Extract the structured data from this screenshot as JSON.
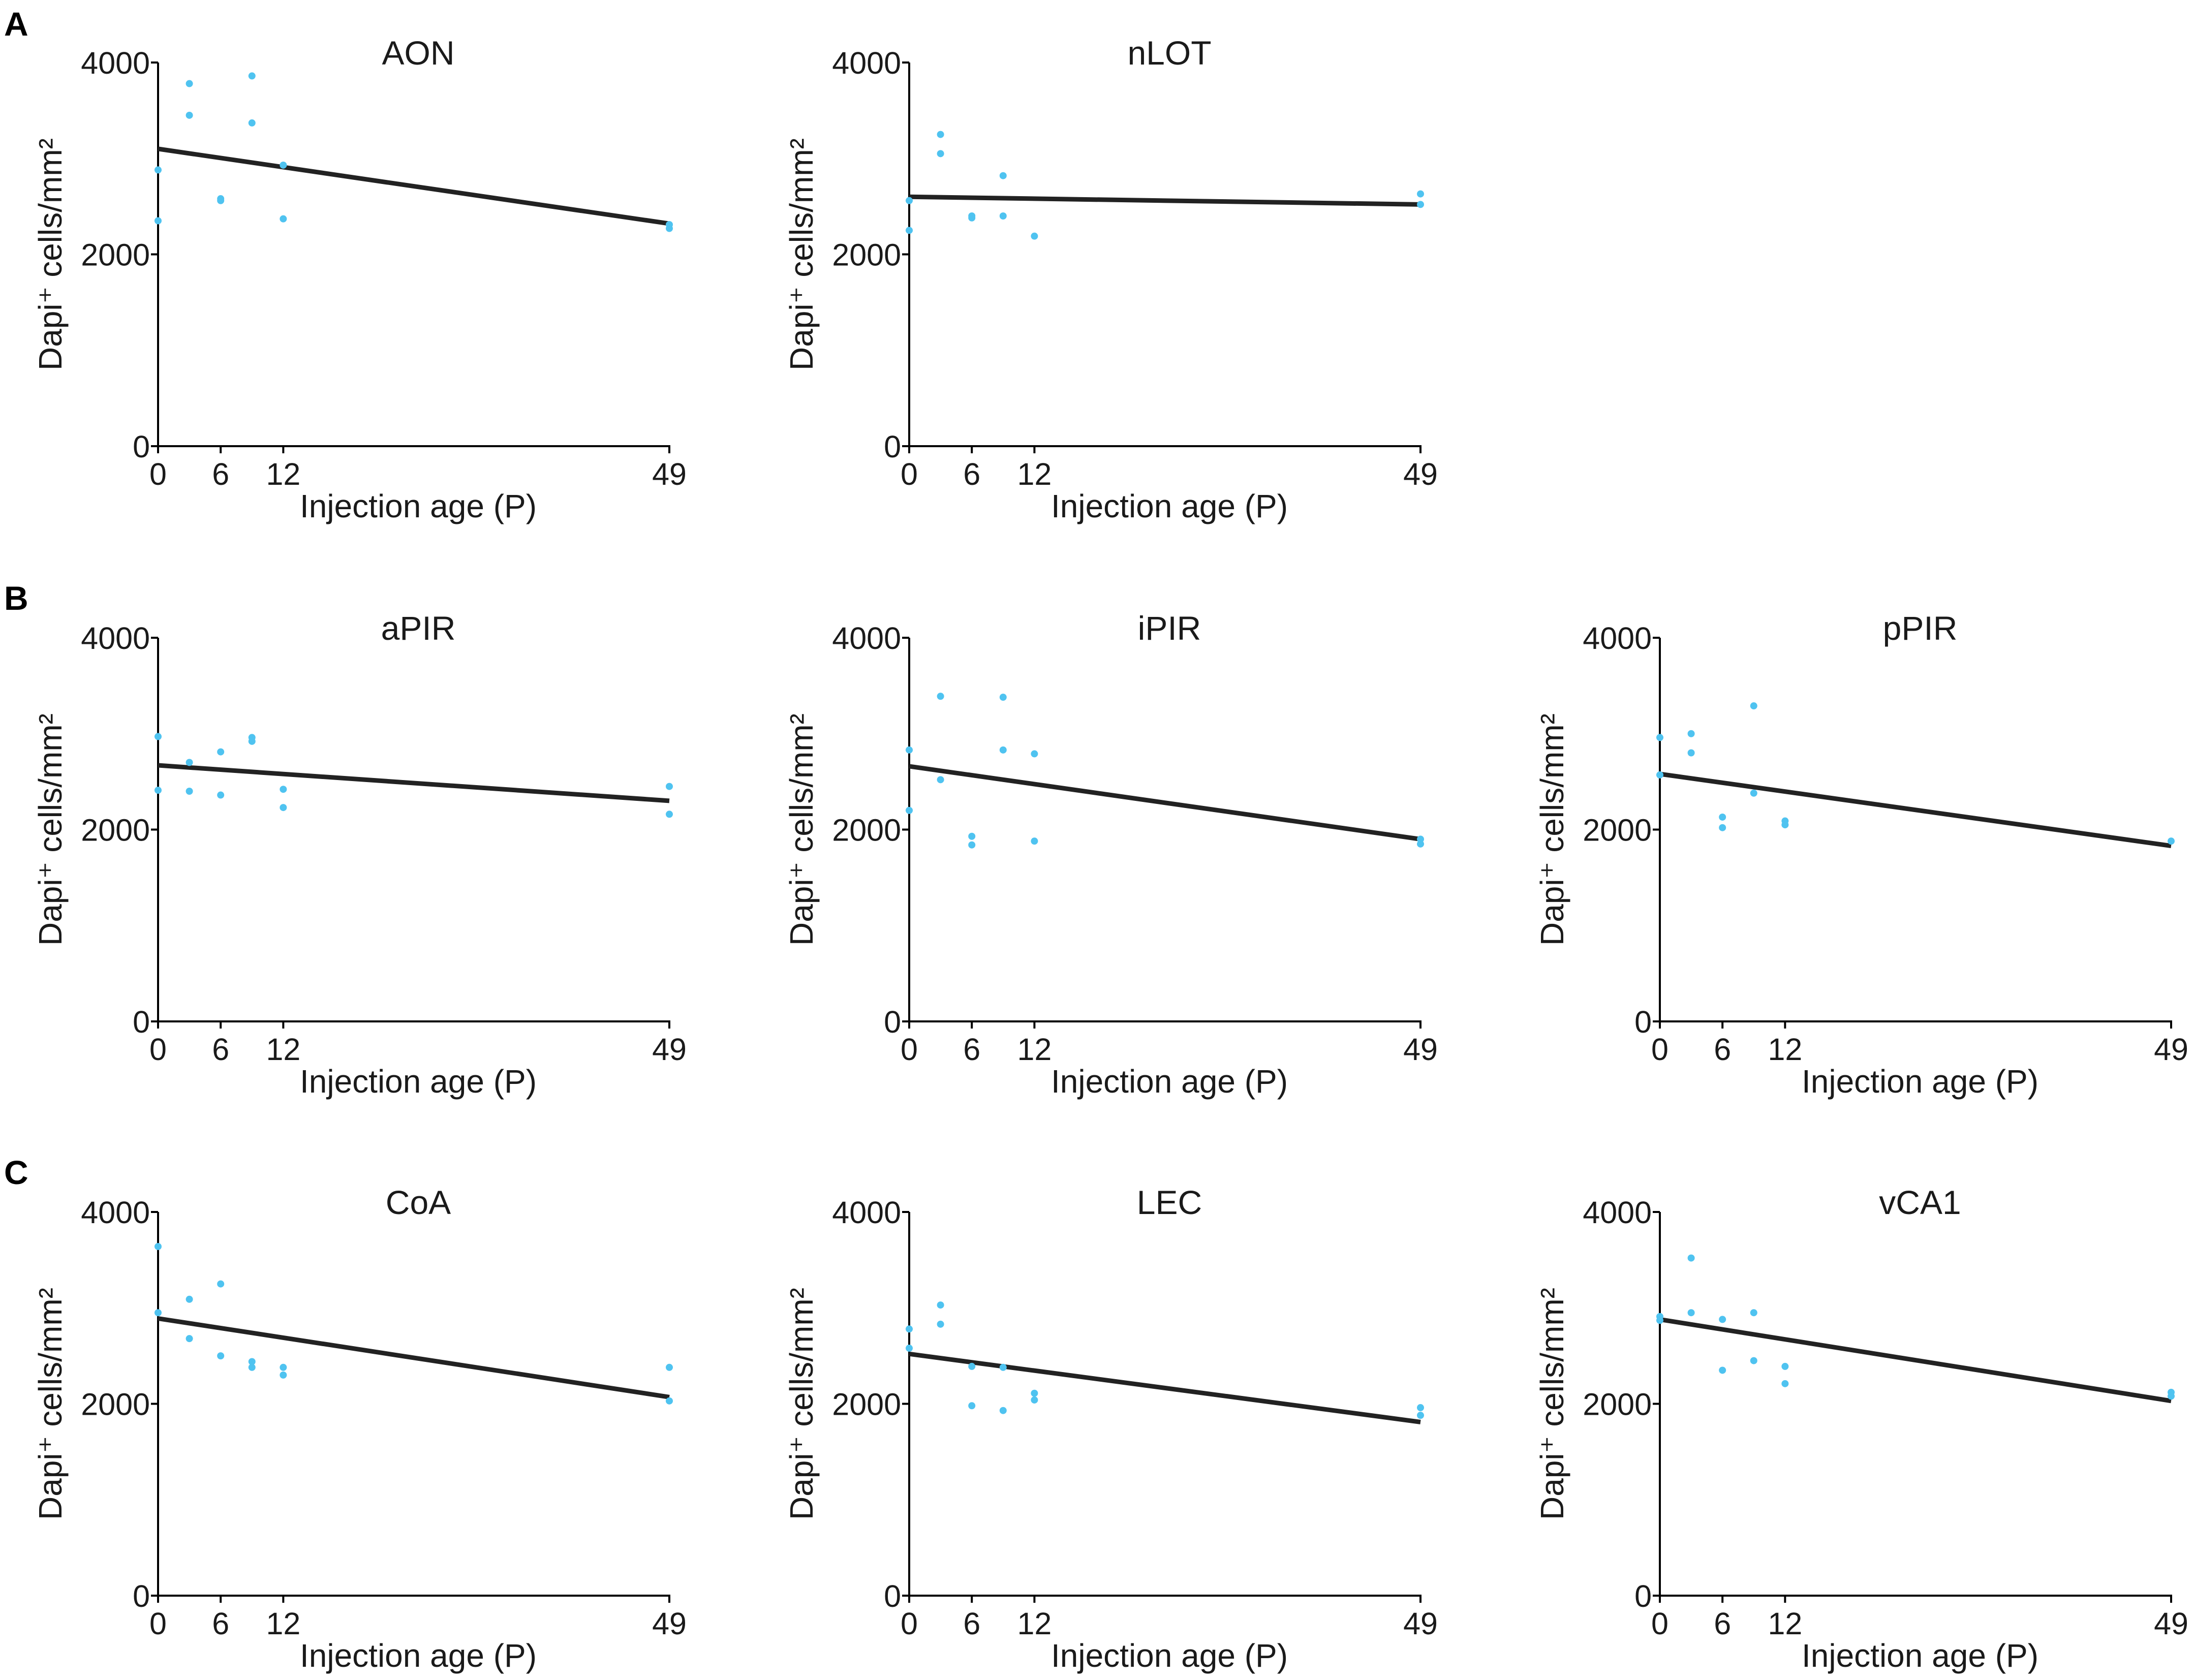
{
  "panels": [
    "A",
    "B",
    "C"
  ],
  "chart_data": [
    {
      "type": "scatter",
      "title": "AON",
      "panel": "A",
      "xlabel": "Injection age (P)",
      "ylabel": "Dapi⁺ cells/mm²",
      "xlim": [
        0,
        49
      ],
      "ylim": [
        0,
        4000
      ],
      "xticks": [
        0,
        6,
        12,
        49
      ],
      "yticks": [
        0,
        2000,
        4000
      ],
      "points": {
        "x": [
          0,
          0,
          3,
          3,
          6,
          6,
          9,
          9,
          12,
          12,
          49,
          49
        ],
        "y": [
          2880,
          2350,
          3780,
          3450,
          2580,
          2560,
          3860,
          3370,
          2930,
          2370,
          2310,
          2270
        ]
      },
      "fit": {
        "x": [
          0,
          49
        ],
        "y": [
          3100,
          2320
        ]
      }
    },
    {
      "type": "scatter",
      "title": "nLOT",
      "panel": "A",
      "xlabel": "Injection age (P)",
      "ylabel": "Dapi⁺ cells/mm²",
      "xlim": [
        0,
        49
      ],
      "ylim": [
        0,
        4000
      ],
      "xticks": [
        0,
        6,
        12,
        49
      ],
      "yticks": [
        0,
        2000,
        4000
      ],
      "points": {
        "x": [
          0,
          0,
          3,
          3,
          6,
          6,
          9,
          9,
          12,
          49,
          49
        ],
        "y": [
          2560,
          2250,
          3250,
          3050,
          2400,
          2380,
          2820,
          2400,
          2190,
          2630,
          2520
        ]
      },
      "fit": {
        "x": [
          0,
          49
        ],
        "y": [
          2600,
          2520
        ]
      }
    },
    {
      "type": "scatter",
      "title": "aPIR",
      "panel": "B",
      "xlabel": "Injection age (P)",
      "ylabel": "Dapi⁺ cells/mm²",
      "xlim": [
        0,
        49
      ],
      "ylim": [
        0,
        4000
      ],
      "xticks": [
        0,
        6,
        12,
        49
      ],
      "yticks": [
        0,
        2000,
        4000
      ],
      "points": {
        "x": [
          0,
          0,
          3,
          3,
          6,
          6,
          9,
          9,
          12,
          12,
          49,
          49
        ],
        "y": [
          2970,
          2410,
          2700,
          2400,
          2810,
          2360,
          2960,
          2920,
          2420,
          2230,
          2450,
          2160
        ]
      },
      "fit": {
        "x": [
          0,
          49
        ],
        "y": [
          2670,
          2300
        ]
      }
    },
    {
      "type": "scatter",
      "title": "iPIR",
      "panel": "B",
      "xlabel": "Injection age (P)",
      "ylabel": "Dapi⁺ cells/mm²",
      "xlim": [
        0,
        49
      ],
      "ylim": [
        0,
        4000
      ],
      "xticks": [
        0,
        6,
        12,
        49
      ],
      "yticks": [
        0,
        2000,
        4000
      ],
      "points": {
        "x": [
          0,
          0,
          3,
          3,
          6,
          6,
          9,
          9,
          12,
          12,
          49,
          49
        ],
        "y": [
          2830,
          2200,
          3390,
          2520,
          1930,
          1840,
          3380,
          2830,
          2790,
          1880,
          1900,
          1850
        ]
      },
      "fit": {
        "x": [
          0,
          49
        ],
        "y": [
          2660,
          1900
        ]
      }
    },
    {
      "type": "scatter",
      "title": "pPIR",
      "panel": "B",
      "xlabel": "Injection age (P)",
      "ylabel": "Dapi⁺ cells/mm²",
      "xlim": [
        0,
        49
      ],
      "ylim": [
        0,
        4000
      ],
      "xticks": [
        0,
        6,
        12,
        49
      ],
      "yticks": [
        0,
        2000,
        4000
      ],
      "points": {
        "x": [
          0,
          0,
          3,
          3,
          6,
          6,
          9,
          9,
          12,
          12,
          49
        ],
        "y": [
          2960,
          2570,
          3000,
          2800,
          2130,
          2020,
          3290,
          2380,
          2090,
          2050,
          1880
        ]
      },
      "fit": {
        "x": [
          0,
          49
        ],
        "y": [
          2580,
          1830
        ]
      }
    },
    {
      "type": "scatter",
      "title": "CoA",
      "panel": "C",
      "xlabel": "Injection age (P)",
      "ylabel": "Dapi⁺ cells/mm²",
      "xlim": [
        0,
        49
      ],
      "ylim": [
        0,
        4000
      ],
      "xticks": [
        0,
        6,
        12,
        49
      ],
      "yticks": [
        0,
        2000,
        4000
      ],
      "points": {
        "x": [
          0,
          0,
          3,
          3,
          6,
          6,
          9,
          9,
          12,
          12,
          49,
          49
        ],
        "y": [
          3640,
          2950,
          3090,
          2680,
          3250,
          2500,
          2440,
          2380,
          2380,
          2300,
          2380,
          2030
        ]
      },
      "fit": {
        "x": [
          0,
          49
        ],
        "y": [
          2890,
          2070
        ]
      }
    },
    {
      "type": "scatter",
      "title": "LEC",
      "panel": "C",
      "xlabel": "Injection age (P)",
      "ylabel": "Dapi⁺ cells/mm²",
      "xlim": [
        0,
        49
      ],
      "ylim": [
        0,
        4000
      ],
      "xticks": [
        0,
        6,
        12,
        49
      ],
      "yticks": [
        0,
        2000,
        4000
      ],
      "points": {
        "x": [
          0,
          0,
          3,
          3,
          6,
          6,
          9,
          9,
          12,
          12,
          49,
          49
        ],
        "y": [
          2780,
          2580,
          3030,
          2830,
          2390,
          1980,
          2380,
          1930,
          2110,
          2040,
          1960,
          1880
        ]
      },
      "fit": {
        "x": [
          0,
          49
        ],
        "y": [
          2520,
          1810
        ]
      }
    },
    {
      "type": "scatter",
      "title": "vCA1",
      "panel": "C",
      "xlabel": "Injection age (P)",
      "ylabel": "Dapi⁺ cells/mm²",
      "xlim": [
        0,
        49
      ],
      "ylim": [
        0,
        4000
      ],
      "xticks": [
        0,
        6,
        12,
        49
      ],
      "yticks": [
        0,
        2000,
        4000
      ],
      "points": {
        "x": [
          0,
          0,
          3,
          3,
          6,
          6,
          9,
          9,
          12,
          12,
          49,
          49
        ],
        "y": [
          2910,
          2870,
          3520,
          2950,
          2880,
          2350,
          2950,
          2450,
          2390,
          2210,
          2120,
          2080
        ]
      },
      "fit": {
        "x": [
          0,
          49
        ],
        "y": [
          2880,
          2030
        ]
      }
    }
  ]
}
